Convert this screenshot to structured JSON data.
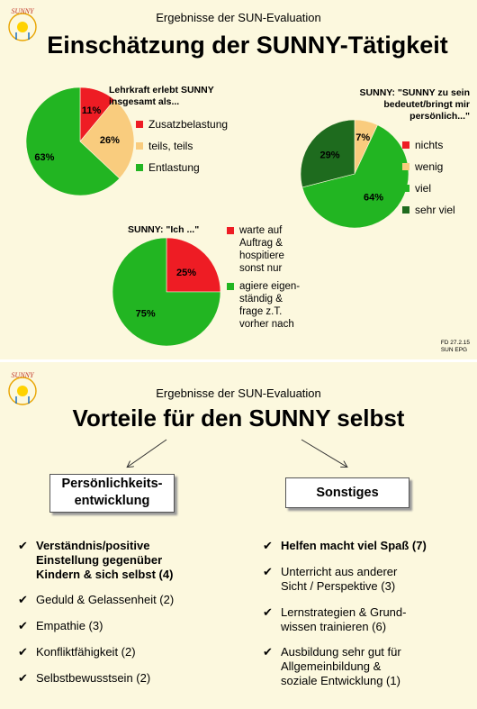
{
  "slide1": {
    "subtitle": "Ergebnisse der SUN-Evaluation",
    "title": "Einschätzung der SUNNY-Tätigkeit",
    "footer": [
      "FD  27.2.15",
      "SUN EPG"
    ]
  },
  "slide2": {
    "subtitle": "Ergebnisse der SUN-Evaluation",
    "title": "Vorteile für den SUNNY selbst",
    "left_box": [
      "Persönlichkeits-",
      "entwicklung"
    ],
    "right_box": "Sonstiges",
    "left_items": [
      {
        "lines": [
          "Verständnis/positive",
          "Einstellung gegenüber",
          "Kindern & sich selbst  (4)"
        ],
        "bold": true
      },
      {
        "lines": [
          "Geduld & Gelassenheit  (2)"
        ],
        "bold": false
      },
      {
        "lines": [
          "Empathie  (3)"
        ],
        "bold": false
      },
      {
        "lines": [
          "Konfliktfähigkeit  (2)"
        ],
        "bold": false
      },
      {
        "lines": [
          "Selbstbewusstsein  (2)"
        ],
        "bold": false
      }
    ],
    "right_items": [
      {
        "lines": [
          "Helfen macht viel Spaß  (7)"
        ],
        "bold": true
      },
      {
        "lines": [
          "Unterricht  aus anderer",
          "Sicht / Perspektive (3)"
        ],
        "bold": false
      },
      {
        "lines": [
          "Lernstrategien & Grund-",
          "wissen trainieren  (6)"
        ],
        "bold": false
      },
      {
        "lines": [
          "Ausbildung sehr gut für",
          "Allgemeinbildung &",
          "soziale Entwicklung  (1)"
        ],
        "bold": false
      }
    ],
    "check": "✔"
  },
  "logo_text": "SUNNY",
  "chart_data": [
    {
      "type": "pie",
      "title": [
        "Lehrkraft erlebt SUNNY",
        "insgesamt als..."
      ],
      "categories": [
        "Zusatzbelastung",
        "teils, teils",
        "Entlastung"
      ],
      "values": [
        11,
        26,
        63
      ],
      "labels": [
        "11%",
        "26%",
        "63%"
      ],
      "colors": [
        "#ee1c24",
        "#f9cc7e",
        "#22b522"
      ],
      "legend": "right"
    },
    {
      "type": "pie",
      "title": [
        "SUNNY:  \"SUNNY zu sein",
        "bedeutet/bringt mir",
        "persönlich...\""
      ],
      "categories": [
        "nichts",
        "wenig",
        "viel",
        "sehr viel"
      ],
      "values": [
        0,
        7,
        64,
        29
      ],
      "labels": [
        "",
        "7%",
        "64%",
        "29%"
      ],
      "colors": [
        "#ee1c24",
        "#f9cc7e",
        "#22b522",
        "#1e6b1e"
      ],
      "legend": "right"
    },
    {
      "type": "pie",
      "title": [
        "SUNNY: \"Ich ...\""
      ],
      "categories": [
        "warte auf Auftrag & hospitiere sonst nur",
        "agiere eigen- ständig & frage z.T. vorher nach"
      ],
      "legend_lines": [
        [
          "warte auf",
          "Auftrag &",
          "hospitiere",
          "sonst nur"
        ],
        [
          "agiere eigen-",
          "ständig &",
          "frage z.T.",
          "vorher nach"
        ]
      ],
      "values": [
        25,
        75
      ],
      "labels": [
        "25%",
        "75%"
      ],
      "colors": [
        "#ee1c24",
        "#22b522"
      ],
      "legend": "right"
    }
  ]
}
